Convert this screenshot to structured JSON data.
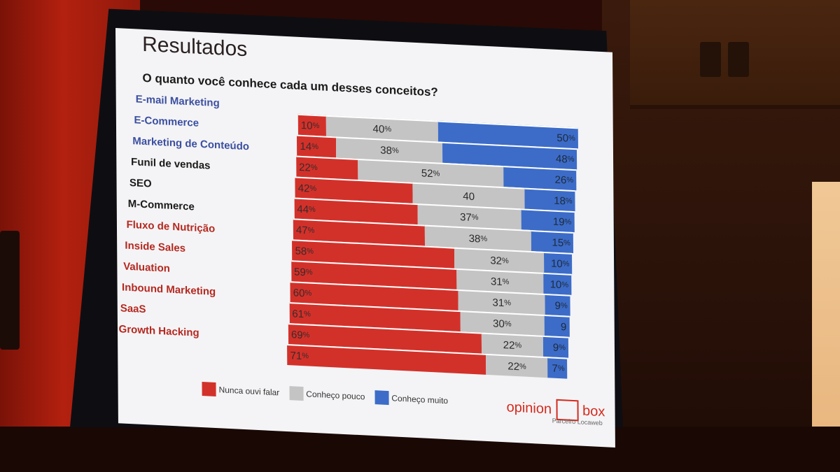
{
  "slide": {
    "title": "Resultados",
    "question": "O quanto você conhece cada um desses conceitos?",
    "legend": [
      "Nunca ouvi falar",
      "Conheço pouco",
      "Conheço muito"
    ],
    "brand_left": "opinion",
    "brand_right": "box",
    "brand_sub": "Parceiro Locaweb"
  },
  "colors": {
    "red": "#d2312a",
    "gray": "#c4c4c4",
    "blue": "#3c6cc8",
    "label_blue": "#3b4fa0",
    "label_black": "#1a1a1a",
    "label_red": "#b5281f"
  },
  "chart_data": {
    "type": "bar",
    "title": "O quanto você conhece cada um desses conceitos?",
    "categories": [
      "E-mail Marketing",
      "E-Commerce",
      "Marketing de Conteúdo",
      "Funil de vendas",
      "SEO",
      "M-Commerce",
      "Fluxo de Nutrição",
      "Inside Sales",
      "Valuation",
      "Inbound Marketing",
      "SaaS",
      "Growth Hacking"
    ],
    "category_colors": [
      "label_blue",
      "label_blue",
      "label_blue",
      "label_black",
      "label_black",
      "label_black",
      "label_red",
      "label_red",
      "label_red",
      "label_red",
      "label_red",
      "label_red"
    ],
    "series": [
      {
        "name": "Nunca ouvi falar",
        "values": [
          10,
          14,
          22,
          42,
          44,
          47,
          58,
          59,
          60,
          61,
          69,
          71
        ],
        "labels": [
          "10",
          "14",
          "22",
          "42",
          "44",
          "47",
          "58",
          "59",
          "60",
          "61",
          "69",
          "71"
        ],
        "suffix": [
          "%",
          "%",
          "%",
          "%",
          "%",
          "%",
          "%",
          "%",
          "%",
          "%",
          "%",
          "%"
        ]
      },
      {
        "name": "Conheço pouco",
        "values": [
          40,
          38,
          52,
          40,
          37,
          38,
          32,
          31,
          31,
          30,
          22,
          22
        ],
        "labels": [
          "40",
          "38",
          "52",
          "40",
          "37",
          "38",
          "32",
          "31",
          "31",
          "30",
          "22",
          "22"
        ],
        "suffix": [
          "%",
          "%",
          "%",
          "",
          "%",
          "%",
          "%",
          "%",
          "%",
          "%",
          "%",
          "%"
        ]
      },
      {
        "name": "Conheço muito",
        "values": [
          50,
          48,
          26,
          18,
          19,
          15,
          10,
          10,
          9,
          9,
          9,
          7
        ],
        "labels": [
          "50",
          "48",
          "26",
          "18",
          "19",
          "15",
          "10",
          "10",
          "9",
          "9",
          "9",
          "7"
        ],
        "suffix": [
          "%",
          "%",
          "%",
          "%",
          "%",
          "%",
          "%",
          "%",
          "%",
          "",
          "%",
          "%"
        ]
      }
    ],
    "stacked": true,
    "orientation": "horizontal",
    "xlim": [
      0,
      100
    ],
    "legend_position": "bottom"
  }
}
